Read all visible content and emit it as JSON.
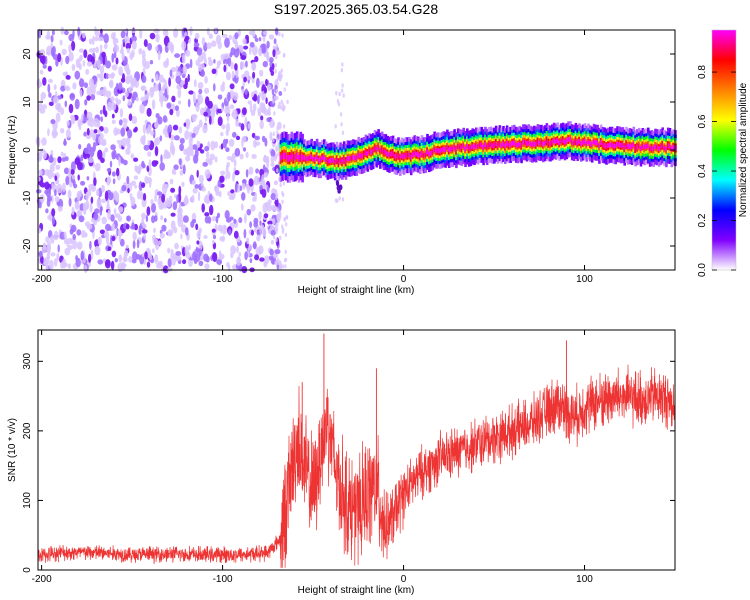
{
  "title": "S197.2025.365.03.54.G28",
  "chart_data": [
    {
      "type": "heatmap",
      "xlabel": "Height of straight line (km)",
      "ylabel": "Frequency (Hz)",
      "xlim": [
        -202,
        150
      ],
      "ylim": [
        -25,
        25
      ],
      "xticks": [
        -200,
        -100,
        0,
        100
      ],
      "yticks": [
        -20,
        -10,
        0,
        10,
        20
      ],
      "colorbar": {
        "label": "Normalized spectral amplitude",
        "range": [
          0,
          0.97
        ],
        "ticks": [
          0.0,
          0.2,
          0.4,
          0.6,
          0.8
        ],
        "colors": [
          "#ffffff",
          "#8000ff",
          "#0000ff",
          "#00ffff",
          "#00ff00",
          "#ffff00",
          "#ff8000",
          "#ff0000",
          "#ff00ff"
        ]
      },
      "noise_region": {
        "x": [
          -202,
          -68
        ],
        "freq": [
          -25,
          25
        ],
        "typical_amplitude": 0.05
      },
      "signal_ridge": {
        "x": [
          -68,
          -55,
          -45,
          -38,
          -30,
          -20,
          -15,
          -10,
          0,
          10,
          20,
          40,
          60,
          80,
          90,
          100,
          120,
          150
        ],
        "freq": [
          -1.5,
          -1.5,
          -1.8,
          -2.5,
          -2.0,
          -0.8,
          0.5,
          -0.5,
          -1.5,
          -0.8,
          0.0,
          0.8,
          1.2,
          1.5,
          2.0,
          1.5,
          0.8,
          0.5
        ],
        "peak_amplitude": 0.97
      },
      "grid": false
    },
    {
      "type": "line",
      "xlabel": "Height of straight line (km)",
      "ylabel": "SNR (10 * v/v)",
      "xlim": [
        -202,
        150
      ],
      "ylim": [
        0,
        345
      ],
      "xticks": [
        -200,
        -100,
        0,
        100
      ],
      "yticks": [
        0,
        100,
        200,
        300
      ],
      "color": "#ee3333",
      "series": [
        {
          "x": [
            -202,
            -190,
            -170,
            -150,
            -130,
            -110,
            -90,
            -75,
            -68,
            -62,
            -58,
            -55,
            -50,
            -45,
            -42,
            -38,
            -35,
            -30,
            -25,
            -20,
            -15,
            -10,
            -5,
            0,
            10,
            20,
            30,
            40,
            50,
            60,
            70,
            80,
            85,
            90,
            95,
            100,
            110,
            120,
            130,
            140,
            150
          ],
          "y": [
            20,
            25,
            25,
            22,
            23,
            22,
            22,
            25,
            45,
            140,
            190,
            150,
            110,
            180,
            220,
            150,
            120,
            90,
            80,
            110,
            120,
            60,
            80,
            110,
            140,
            160,
            170,
            180,
            190,
            200,
            210,
            230,
            240,
            230,
            220,
            235,
            245,
            250,
            245,
            250,
            240
          ]
        }
      ],
      "peaks": [
        {
          "x": -44,
          "y": 340
        },
        {
          "x": -56,
          "y": 270
        },
        {
          "x": -15,
          "y": 290
        },
        {
          "x": 90,
          "y": 330
        }
      ],
      "grid": false
    }
  ]
}
